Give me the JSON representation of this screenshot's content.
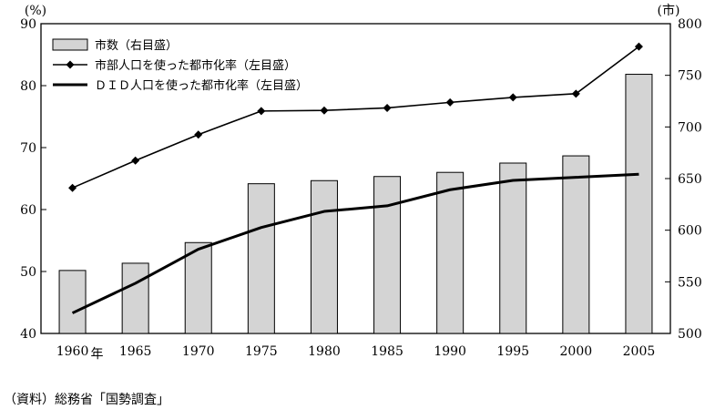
{
  "chart_data": {
    "type": "bar",
    "categories": [
      "1960",
      "1965",
      "1970",
      "1975",
      "1980",
      "1985",
      "1990",
      "1995",
      "2000",
      "2005"
    ],
    "x_first_suffix": "年",
    "y_left": {
      "unit": "(%)",
      "ylim": [
        40,
        90
      ],
      "ticks": [
        40,
        50,
        60,
        70,
        80,
        90
      ]
    },
    "y_right": {
      "unit": "(市)",
      "ylim": [
        500,
        800
      ],
      "ticks": [
        500,
        550,
        600,
        650,
        700,
        750,
        800
      ]
    },
    "series": [
      {
        "name": "市数（右目盛）",
        "type": "bar",
        "axis": "right",
        "values": [
          561,
          568,
          588,
          645,
          648,
          652,
          656,
          665,
          672,
          751
        ],
        "color": "#d4d4d4"
      },
      {
        "name": "市部人口を使った都市化率（左目盛）",
        "type": "line",
        "axis": "left",
        "marker": "diamond",
        "values": [
          63.5,
          67.9,
          72.1,
          75.9,
          76.0,
          76.4,
          77.3,
          78.1,
          78.7,
          86.3
        ],
        "color": "#000000"
      },
      {
        "name": "ＤＩＤ人口を使った都市化率（左目盛）",
        "type": "line",
        "axis": "left",
        "marker": "none",
        "values": [
          43.3,
          48.1,
          53.6,
          57.1,
          59.7,
          60.6,
          63.2,
          64.7,
          65.2,
          65.7
        ],
        "color": "#000000"
      }
    ],
    "grid": false,
    "legend": "top-left"
  },
  "source": "（資料）総務省「国勢調査」"
}
